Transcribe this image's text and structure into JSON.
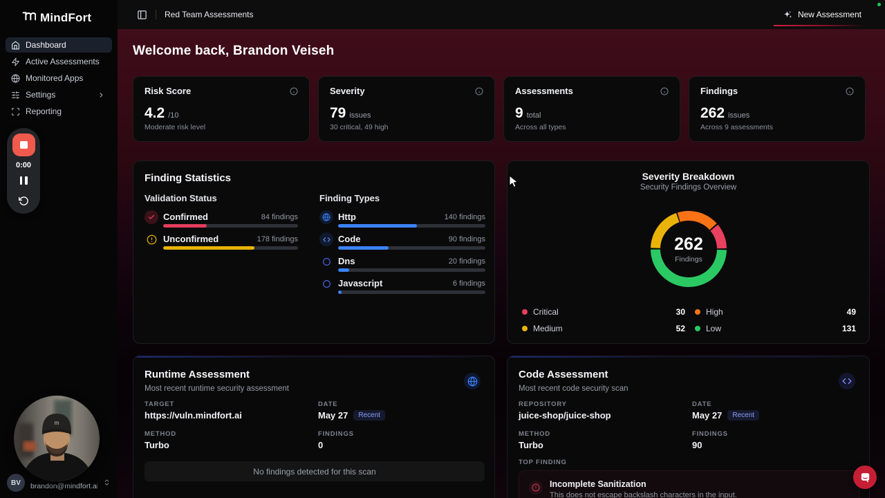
{
  "app": {
    "brand": "MindFort",
    "breadcrumb": "Red Team Assessments",
    "new_assessment_label": "New Assessment",
    "status_dot_color": "#22c55e",
    "accent_red": "#d41f3f"
  },
  "sidebar": {
    "items": [
      {
        "label": "Dashboard",
        "icon": "home-icon",
        "active": true
      },
      {
        "label": "Active Assessments",
        "icon": "zap-icon",
        "active": false
      },
      {
        "label": "Monitored Apps",
        "icon": "globe-icon",
        "active": false
      },
      {
        "label": "Settings",
        "icon": "sliders-icon",
        "active": false,
        "has_submenu": true
      },
      {
        "label": "Reporting",
        "icon": "scan-icon",
        "active": false
      }
    ],
    "user": {
      "initials": "BV",
      "email": "brandon@mindfort.ai"
    }
  },
  "recorder": {
    "time": "0:00"
  },
  "main": {
    "welcome": "Welcome back, Brandon Veiseh",
    "stat_cards": [
      {
        "title": "Risk Score",
        "value": "4.2",
        "unit": "/10",
        "caption": "Moderate risk level"
      },
      {
        "title": "Severity",
        "value": "79",
        "unit": "issues",
        "caption": "30 critical, 49 high"
      },
      {
        "title": "Assessments",
        "value": "9",
        "unit": "total",
        "caption": "Across all types"
      },
      {
        "title": "Findings",
        "value": "262",
        "unit": "issues",
        "caption": "Across 9 assessments"
      }
    ]
  },
  "finding_stats": {
    "title": "Finding Statistics",
    "validation": {
      "header": "Validation Status",
      "rows": [
        {
          "label": "Confirmed",
          "count": 84,
          "count_label": "84 findings",
          "pct": 32.1,
          "color": "#e23d5b"
        },
        {
          "label": "Unconfirmed",
          "count": 178,
          "count_label": "178 findings",
          "pct": 67.9,
          "color": "#e9b308"
        }
      ]
    },
    "types": {
      "header": "Finding Types",
      "rows": [
        {
          "label": "Http",
          "count": 140,
          "count_label": "140 findings",
          "pct": 53.4,
          "color": "#3b82f6"
        },
        {
          "label": "Code",
          "count": 90,
          "count_label": "90 findings",
          "pct": 34.4,
          "color": "#3b82f6"
        },
        {
          "label": "Dns",
          "count": 20,
          "count_label": "20 findings",
          "pct": 7.6,
          "color": "#3b82f6"
        },
        {
          "label": "Javascript",
          "count": 6,
          "count_label": "6 findings",
          "pct": 2.3,
          "color": "#3b82f6"
        }
      ]
    }
  },
  "chart_data": {
    "type": "pie",
    "title": "Severity Breakdown",
    "subtitle": "Security Findings Overview",
    "center_value": "262",
    "center_label": "Findings",
    "total": 262,
    "start_angle_deg": -18.5,
    "gap_deg": 2.5,
    "draw_order_clockwise_from_top": [
      1,
      0,
      3,
      2
    ],
    "segments": [
      {
        "name": "Critical",
        "value": 30,
        "color": "#e8405f"
      },
      {
        "name": "High",
        "value": 49,
        "color": "#f97316"
      },
      {
        "name": "Medium",
        "value": 52,
        "color": "#eab308"
      },
      {
        "name": "Low",
        "value": 131,
        "color": "#2bc964"
      }
    ],
    "legend_position": "bottom"
  },
  "runtime": {
    "title": "Runtime Assessment",
    "subtitle": "Most recent runtime security assessment",
    "target_label": "TARGET",
    "target": "https://vuln.mindfort.ai",
    "date_label": "DATE",
    "date": "May 27",
    "date_badge": "Recent",
    "method_label": "METHOD",
    "method": "Turbo",
    "findings_label": "FINDINGS",
    "findings": "0",
    "empty_state": "No findings detected for this scan"
  },
  "code_assessment": {
    "title": "Code Assessment",
    "subtitle": "Most recent code security scan",
    "repo_label": "REPOSITORY",
    "repo": "juice-shop/juice-shop",
    "date_label": "DATE",
    "date": "May 27",
    "date_badge": "Recent",
    "method_label": "METHOD",
    "method": "Turbo",
    "findings_label": "FINDINGS",
    "findings": "90",
    "top_finding_label": "TOP FINDING",
    "top_finding": {
      "title": "Incomplete Sanitization",
      "description": "This does not escape backslash characters in the input."
    }
  }
}
